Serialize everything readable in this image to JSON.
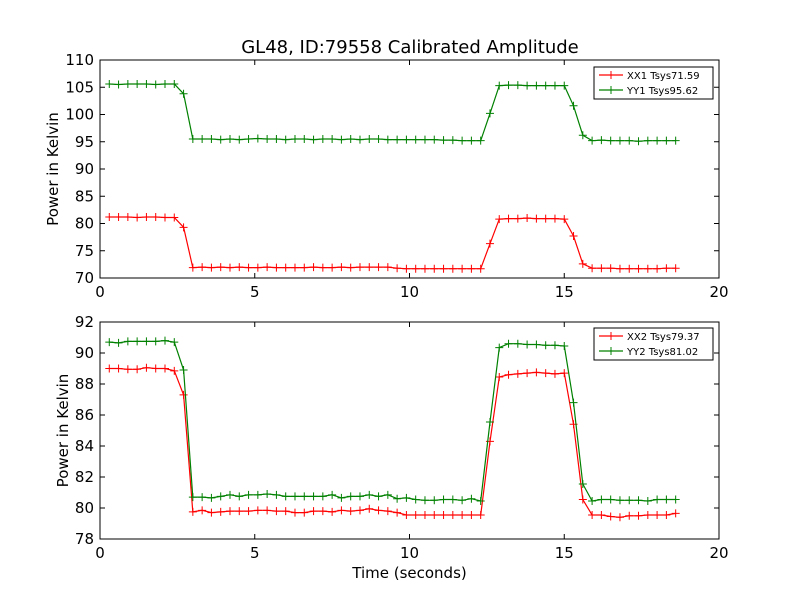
{
  "chart_data": [
    {
      "type": "line",
      "title": "GL48, ID:79558 Calibrated Amplitude",
      "xlabel": "",
      "ylabel": "Power in Kelvin",
      "xlim": [
        0,
        20
      ],
      "ylim": [
        70,
        110
      ],
      "xticks": [
        "0",
        "5",
        "10",
        "15",
        "20"
      ],
      "yticks": [
        "70",
        "75",
        "80",
        "85",
        "90",
        "95",
        "100",
        "105",
        "110"
      ],
      "legend_position": "top-right",
      "x": [
        0.3,
        0.6,
        0.9,
        1.2,
        1.5,
        1.8,
        2.1,
        2.4,
        2.7,
        3.0,
        3.3,
        3.6,
        3.9,
        4.2,
        4.5,
        4.8,
        5.1,
        5.4,
        5.7,
        6.0,
        6.3,
        6.6,
        6.9,
        7.2,
        7.5,
        7.8,
        8.1,
        8.4,
        8.7,
        9.0,
        9.3,
        9.6,
        9.9,
        10.2,
        10.5,
        10.8,
        11.1,
        11.4,
        11.7,
        12.0,
        12.3,
        12.6,
        12.9,
        13.2,
        13.5,
        13.8,
        14.1,
        14.4,
        14.7,
        15.0,
        15.3,
        15.6,
        15.9,
        16.2,
        16.5,
        16.8,
        17.1,
        17.4,
        17.7,
        18.0,
        18.3,
        18.6
      ],
      "series": [
        {
          "name": "XX1 Tsys71.59",
          "color": "#ff0000",
          "values": [
            81.2,
            81.2,
            81.2,
            81.1,
            81.2,
            81.2,
            81.1,
            81.1,
            79.3,
            71.9,
            72.0,
            71.9,
            72.0,
            71.9,
            72.0,
            71.9,
            71.9,
            72.0,
            71.9,
            71.9,
            71.9,
            71.9,
            72.0,
            71.9,
            71.9,
            72.0,
            71.9,
            72.0,
            72.0,
            72.0,
            72.0,
            71.8,
            71.7,
            71.7,
            71.7,
            71.7,
            71.7,
            71.7,
            71.7,
            71.7,
            71.7,
            76.3,
            80.8,
            80.9,
            80.9,
            81.0,
            80.9,
            80.9,
            80.9,
            80.8,
            77.7,
            72.6,
            71.8,
            71.8,
            71.8,
            71.7,
            71.7,
            71.7,
            71.7,
            71.7,
            71.8,
            71.8
          ]
        },
        {
          "name": "YY1 Tsys95.62",
          "color": "#008000",
          "values": [
            105.6,
            105.5,
            105.6,
            105.6,
            105.6,
            105.5,
            105.6,
            105.6,
            103.8,
            95.5,
            95.5,
            95.5,
            95.4,
            95.5,
            95.4,
            95.5,
            95.6,
            95.5,
            95.5,
            95.4,
            95.5,
            95.5,
            95.4,
            95.5,
            95.5,
            95.4,
            95.5,
            95.4,
            95.5,
            95.5,
            95.4,
            95.4,
            95.4,
            95.4,
            95.4,
            95.4,
            95.3,
            95.3,
            95.2,
            95.2,
            95.2,
            100.2,
            105.3,
            105.4,
            105.4,
            105.3,
            105.3,
            105.3,
            105.3,
            105.3,
            101.6,
            96.2,
            95.2,
            95.3,
            95.2,
            95.2,
            95.2,
            95.1,
            95.2,
            95.2,
            95.2,
            95.2
          ]
        }
      ]
    },
    {
      "type": "line",
      "title": "",
      "xlabel": "Time (seconds)",
      "ylabel": "Power in Kelvin",
      "xlim": [
        0,
        20
      ],
      "ylim": [
        78,
        92
      ],
      "xticks": [
        "0",
        "5",
        "10",
        "15",
        "20"
      ],
      "yticks": [
        "78",
        "80",
        "82",
        "84",
        "86",
        "88",
        "90",
        "92"
      ],
      "legend_position": "top-right",
      "x": [
        0.3,
        0.6,
        0.9,
        1.2,
        1.5,
        1.8,
        2.1,
        2.4,
        2.7,
        3.0,
        3.3,
        3.6,
        3.9,
        4.2,
        4.5,
        4.8,
        5.1,
        5.4,
        5.7,
        6.0,
        6.3,
        6.6,
        6.9,
        7.2,
        7.5,
        7.8,
        8.1,
        8.4,
        8.7,
        9.0,
        9.3,
        9.6,
        9.9,
        10.2,
        10.5,
        10.8,
        11.1,
        11.4,
        11.7,
        12.0,
        12.3,
        12.6,
        12.9,
        13.2,
        13.5,
        13.8,
        14.1,
        14.4,
        14.7,
        15.0,
        15.3,
        15.6,
        15.9,
        16.2,
        16.5,
        16.8,
        17.1,
        17.4,
        17.7,
        18.0,
        18.3,
        18.6
      ],
      "series": [
        {
          "name": "XX2 Tsys79.37",
          "color": "#ff0000",
          "values": [
            89.0,
            89.0,
            88.95,
            88.95,
            89.05,
            89.0,
            89.0,
            88.85,
            87.3,
            79.75,
            79.85,
            79.7,
            79.75,
            79.8,
            79.8,
            79.8,
            79.85,
            79.85,
            79.8,
            79.8,
            79.7,
            79.7,
            79.8,
            79.8,
            79.75,
            79.85,
            79.8,
            79.85,
            79.95,
            79.85,
            79.8,
            79.7,
            79.55,
            79.55,
            79.55,
            79.55,
            79.55,
            79.55,
            79.55,
            79.55,
            79.55,
            84.3,
            88.45,
            88.6,
            88.65,
            88.7,
            88.75,
            88.7,
            88.65,
            88.7,
            85.4,
            80.55,
            79.55,
            79.55,
            79.45,
            79.4,
            79.5,
            79.5,
            79.55,
            79.55,
            79.55,
            79.65
          ]
        },
        {
          "name": "YY2 Tsys81.02",
          "color": "#008000",
          "values": [
            90.7,
            90.65,
            90.75,
            90.75,
            90.75,
            90.75,
            90.8,
            90.7,
            88.9,
            80.7,
            80.7,
            80.65,
            80.75,
            80.85,
            80.75,
            80.85,
            80.85,
            80.9,
            80.85,
            80.75,
            80.75,
            80.75,
            80.75,
            80.75,
            80.85,
            80.65,
            80.75,
            80.75,
            80.85,
            80.75,
            80.85,
            80.6,
            80.65,
            80.55,
            80.5,
            80.5,
            80.55,
            80.55,
            80.5,
            80.6,
            80.45,
            85.55,
            90.35,
            90.6,
            90.6,
            90.55,
            90.55,
            90.5,
            90.5,
            90.45,
            86.8,
            81.55,
            80.45,
            80.55,
            80.55,
            80.5,
            80.5,
            80.5,
            80.45,
            80.55,
            80.55,
            80.55
          ]
        }
      ]
    }
  ]
}
